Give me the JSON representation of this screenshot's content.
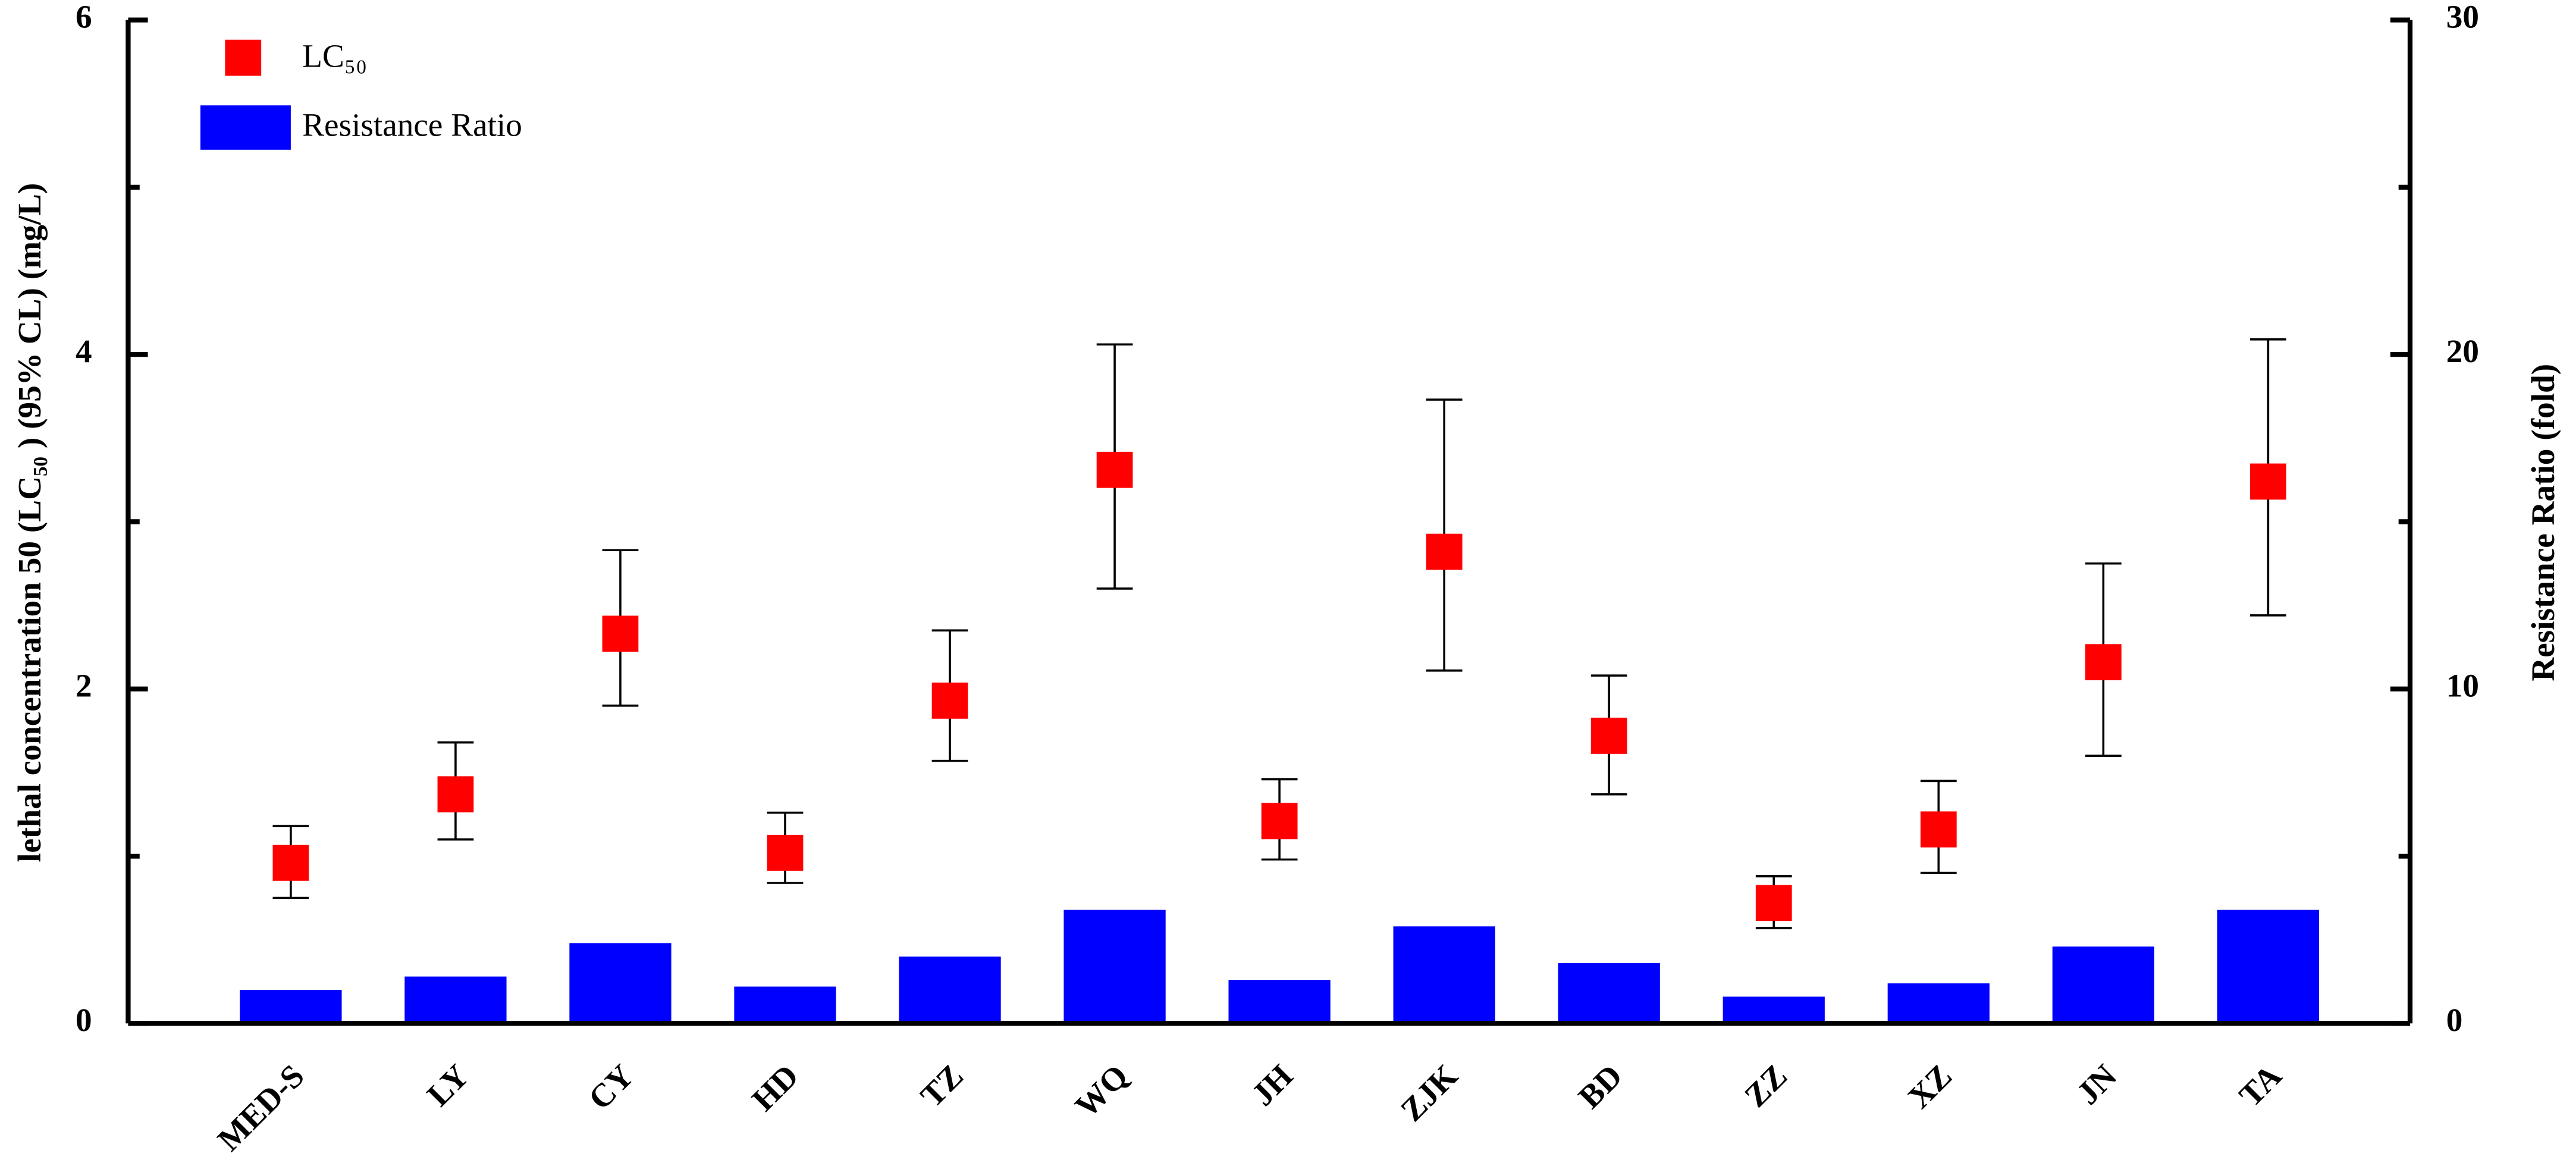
{
  "chart_data": {
    "type": "bar-errorpoint",
    "ylabel": "lethal concentration 50 (LC₅₀ ) (95% CL) (mg/L)",
    "y2label": "Resistance Ratio (fold)",
    "categories": [
      "MED-S",
      "LY",
      "CY",
      "HD",
      "TZ",
      "WQ",
      "JH",
      "ZJK",
      "BD",
      "ZZ",
      "XZ",
      "JN",
      "TA"
    ],
    "series": [
      {
        "name": "LC₅₀",
        "type": "point",
        "color": "#ff0000",
        "values": [
          0.96,
          1.37,
          2.33,
          1.02,
          1.93,
          3.31,
          1.21,
          2.82,
          1.72,
          0.72,
          1.16,
          2.16,
          3.24
        ],
        "lower": [
          0.75,
          1.1,
          1.9,
          0.84,
          1.57,
          2.6,
          0.98,
          2.11,
          1.37,
          0.57,
          0.9,
          1.6,
          2.44
        ],
        "upper": [
          1.18,
          1.68,
          2.83,
          1.26,
          2.35,
          4.06,
          1.46,
          3.73,
          2.08,
          0.88,
          1.45,
          2.75,
          4.09
        ]
      },
      {
        "name": "Resistance Ratio",
        "type": "bar",
        "color": "#0000ff",
        "axis": "y2",
        "values": [
          1.0,
          1.4,
          2.4,
          1.1,
          2.0,
          3.4,
          1.3,
          2.9,
          1.8,
          0.8,
          1.2,
          2.3,
          3.4
        ]
      }
    ],
    "ylim": [
      0,
      6
    ],
    "yticks": [
      0,
      2,
      4,
      6
    ],
    "y2lim": [
      0,
      30
    ],
    "y2ticks": [
      0,
      10,
      20,
      30
    ],
    "legend": "upper-left"
  }
}
